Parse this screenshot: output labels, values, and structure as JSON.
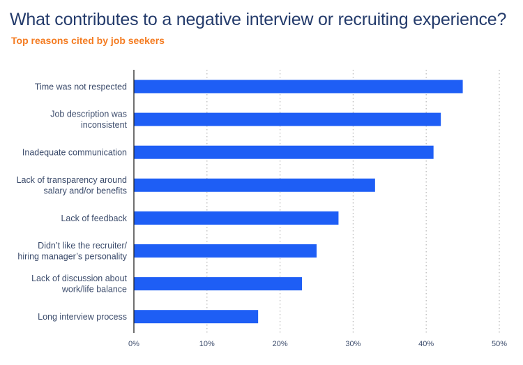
{
  "title": "What contributes to a negative interview or recruiting experience?",
  "subtitle": "Top reasons cited by job seekers",
  "colors": {
    "bar": "#1e5ef5",
    "title": "#243b6b",
    "subtitle": "#f47b20",
    "grid": "#b5b5b5",
    "axis": "#222222",
    "label": "#3b4b6b"
  },
  "chart_data": {
    "type": "bar",
    "orientation": "horizontal",
    "categories": [
      [
        "Time was not respected"
      ],
      [
        "Job description was",
        "inconsistent"
      ],
      [
        "Inadequate communication"
      ],
      [
        "Lack of transparency around",
        "salary and/or benefits"
      ],
      [
        "Lack of feedback"
      ],
      [
        "Didn’t like the recruiter/",
        "hiring manager’s personality"
      ],
      [
        "Lack of discussion about",
        "work/life balance"
      ],
      [
        "Long interview process"
      ]
    ],
    "values": [
      45,
      42,
      41,
      33,
      28,
      25,
      23,
      17
    ],
    "xlim": [
      0,
      50
    ],
    "xticks": [
      0,
      10,
      20,
      30,
      40,
      50
    ],
    "xtick_labels": [
      "0%",
      "10%",
      "20%",
      "30%",
      "40%",
      "50%"
    ],
    "grid": "vertical dotted",
    "legend": "none"
  }
}
